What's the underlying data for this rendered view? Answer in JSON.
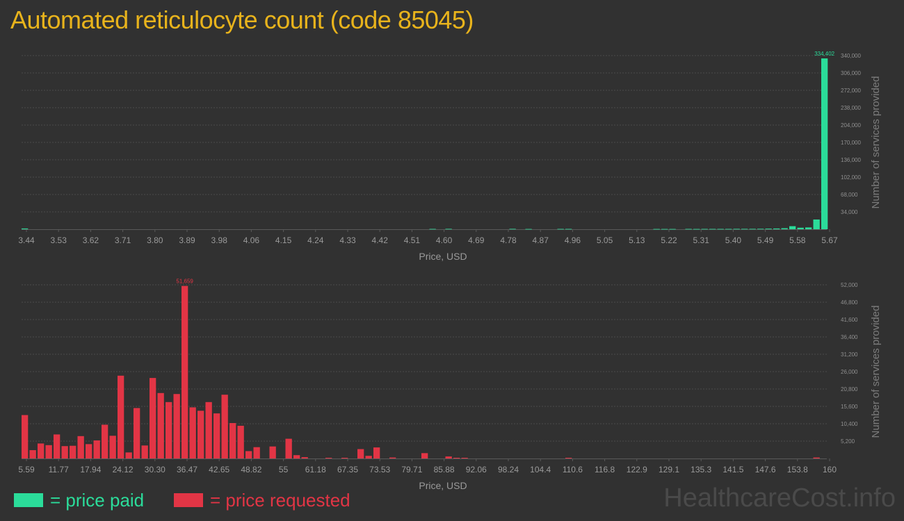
{
  "title": "Automated reticulocyte count (code 85045)",
  "legend": {
    "paid_label": "= price paid",
    "requested_label": "= price requested",
    "paid_color": "#2bdc9a",
    "requested_color": "#e23545"
  },
  "watermark": "HealthcareCost.info",
  "chart_data": [
    {
      "type": "bar",
      "name": "price paid",
      "xlabel": "Price, USD",
      "ylabel": "Number of services provided",
      "x_tick_labels": [
        "3.44",
        "3.53",
        "3.62",
        "3.71",
        "3.80",
        "3.89",
        "3.98",
        "4.06",
        "4.15",
        "4.24",
        "4.33",
        "4.42",
        "4.51",
        "4.60",
        "4.69",
        "4.78",
        "4.87",
        "4.96",
        "5.05",
        "5.13",
        "5.22",
        "5.31",
        "5.40",
        "5.49",
        "5.58",
        "5.67"
      ],
      "y_tick_labels": [
        "34,000",
        "68,000",
        "102,000",
        "136,000",
        "170,000",
        "204,000",
        "238,000",
        "272,000",
        "306,000",
        "340,000"
      ],
      "ylim": [
        0,
        340000
      ],
      "peak_label": "334,402",
      "bar_color": "#2bdc9a",
      "bins": 100,
      "bars": [
        {
          "bin": 0,
          "value": 1500
        },
        {
          "bin": 51,
          "value": 700
        },
        {
          "bin": 53,
          "value": 800
        },
        {
          "bin": 61,
          "value": 800
        },
        {
          "bin": 63,
          "value": 600
        },
        {
          "bin": 67,
          "value": 700
        },
        {
          "bin": 68,
          "value": 700
        },
        {
          "bin": 79,
          "value": 600
        },
        {
          "bin": 80,
          "value": 600
        },
        {
          "bin": 81,
          "value": 600
        },
        {
          "bin": 83,
          "value": 700
        },
        {
          "bin": 84,
          "value": 600
        },
        {
          "bin": 85,
          "value": 700
        },
        {
          "bin": 86,
          "value": 700
        },
        {
          "bin": 87,
          "value": 700
        },
        {
          "bin": 88,
          "value": 700
        },
        {
          "bin": 89,
          "value": 800
        },
        {
          "bin": 90,
          "value": 800
        },
        {
          "bin": 91,
          "value": 800
        },
        {
          "bin": 92,
          "value": 900
        },
        {
          "bin": 93,
          "value": 1200
        },
        {
          "bin": 94,
          "value": 1500
        },
        {
          "bin": 95,
          "value": 2000
        },
        {
          "bin": 96,
          "value": 6000
        },
        {
          "bin": 97,
          "value": 3000
        },
        {
          "bin": 98,
          "value": 3500
        },
        {
          "bin": 99,
          "value": 19000
        },
        {
          "bin": 100,
          "value": 334402
        }
      ]
    },
    {
      "type": "bar",
      "name": "price requested",
      "xlabel": "Price, USD",
      "ylabel": "Number of services provided",
      "x_tick_labels": [
        "5.59",
        "11.77",
        "17.94",
        "24.12",
        "30.30",
        "36.47",
        "42.65",
        "48.82",
        "55",
        "61.18",
        "67.35",
        "73.53",
        "79.71",
        "85.88",
        "92.06",
        "98.24",
        "104.4",
        "110.6",
        "116.8",
        "122.9",
        "129.1",
        "135.3",
        "141.5",
        "147.6",
        "153.8",
        "160"
      ],
      "y_tick_labels": [
        "5,200",
        "10,400",
        "15,600",
        "20,800",
        "26,000",
        "31,200",
        "36,400",
        "41,600",
        "46,800",
        "52,000"
      ],
      "ylim": [
        0,
        52000
      ],
      "peak_label": "51,659",
      "bar_color": "#e23545",
      "bins": 100,
      "bars": [
        {
          "bin": 0,
          "value": 13000
        },
        {
          "bin": 1,
          "value": 2500
        },
        {
          "bin": 2,
          "value": 4500
        },
        {
          "bin": 3,
          "value": 4000
        },
        {
          "bin": 4,
          "value": 7200
        },
        {
          "bin": 5,
          "value": 3700
        },
        {
          "bin": 6,
          "value": 3800
        },
        {
          "bin": 7,
          "value": 6700
        },
        {
          "bin": 8,
          "value": 4300
        },
        {
          "bin": 9,
          "value": 5400
        },
        {
          "bin": 10,
          "value": 10100
        },
        {
          "bin": 11,
          "value": 6800
        },
        {
          "bin": 12,
          "value": 24800
        },
        {
          "bin": 13,
          "value": 1800
        },
        {
          "bin": 14,
          "value": 15100
        },
        {
          "bin": 15,
          "value": 3900
        },
        {
          "bin": 16,
          "value": 24100
        },
        {
          "bin": 17,
          "value": 19600
        },
        {
          "bin": 18,
          "value": 16900
        },
        {
          "bin": 19,
          "value": 19300
        },
        {
          "bin": 20,
          "value": 51659
        },
        {
          "bin": 21,
          "value": 15300
        },
        {
          "bin": 22,
          "value": 14300
        },
        {
          "bin": 23,
          "value": 16900
        },
        {
          "bin": 24,
          "value": 13500
        },
        {
          "bin": 25,
          "value": 19100
        },
        {
          "bin": 26,
          "value": 10600
        },
        {
          "bin": 27,
          "value": 9800
        },
        {
          "bin": 28,
          "value": 2200
        },
        {
          "bin": 29,
          "value": 3400
        },
        {
          "bin": 31,
          "value": 3600
        },
        {
          "bin": 33,
          "value": 5900
        },
        {
          "bin": 34,
          "value": 1000
        },
        {
          "bin": 35,
          "value": 400
        },
        {
          "bin": 38,
          "value": 200
        },
        {
          "bin": 40,
          "value": 200
        },
        {
          "bin": 42,
          "value": 2800
        },
        {
          "bin": 43,
          "value": 800
        },
        {
          "bin": 44,
          "value": 3300
        },
        {
          "bin": 46,
          "value": 300
        },
        {
          "bin": 50,
          "value": 1600
        },
        {
          "bin": 53,
          "value": 600
        },
        {
          "bin": 54,
          "value": 200
        },
        {
          "bin": 55,
          "value": 200
        },
        {
          "bin": 68,
          "value": 200
        },
        {
          "bin": 99,
          "value": 300
        }
      ]
    }
  ]
}
